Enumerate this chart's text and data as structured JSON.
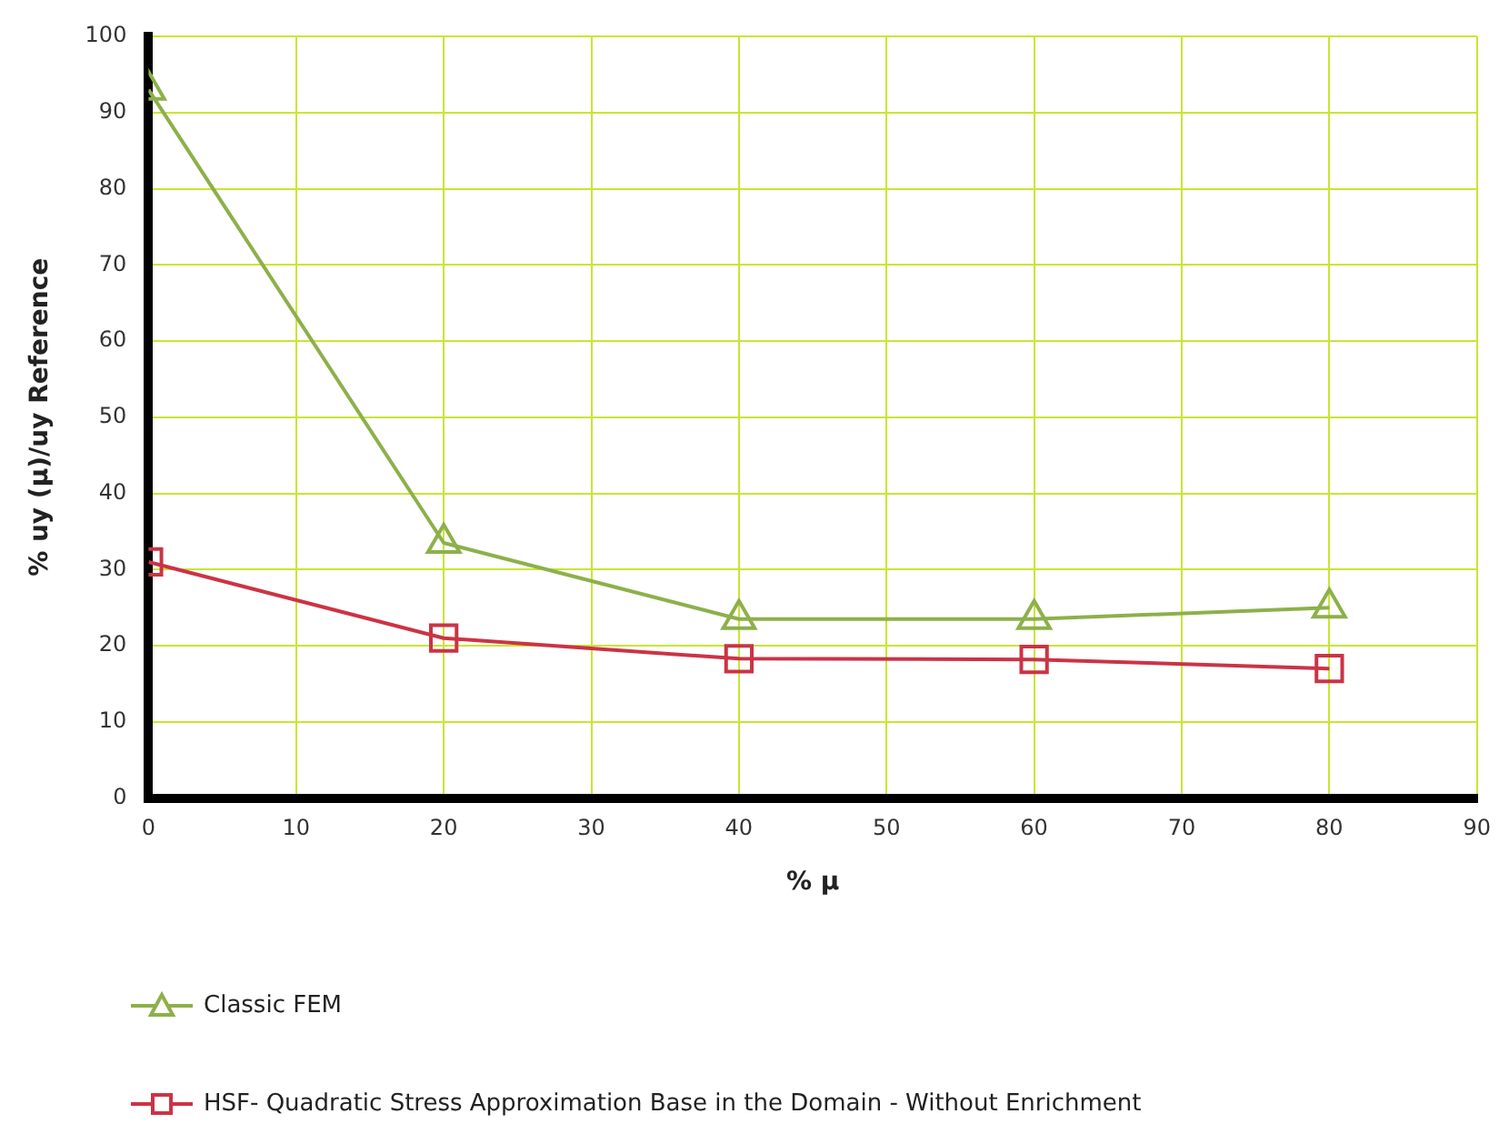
{
  "chart_data": {
    "type": "line",
    "xlabel": "% μ",
    "ylabel": "% uy (μ)/uy Reference",
    "x": [
      0,
      20,
      40,
      60,
      80
    ],
    "series": [
      {
        "name": "Classic FEM",
        "color": "#8db04a",
        "marker": "triangle",
        "values": [
          93,
          33.5,
          23.5,
          23.5,
          25
        ]
      },
      {
        "name": "HSF- Quadratic Stress Approximation Base in the Domain - Without Enrichment",
        "color": "#cc3344",
        "marker": "square",
        "values": [
          31,
          21,
          18.3,
          18.2,
          17
        ]
      }
    ],
    "xlim": [
      0,
      90
    ],
    "xticks": [
      0,
      10,
      20,
      30,
      40,
      50,
      60,
      70,
      80,
      90
    ],
    "ylim": [
      0,
      100
    ],
    "yticks": [
      0,
      10,
      20,
      30,
      40,
      50,
      60,
      70,
      80,
      90,
      100
    ],
    "grid": true,
    "legend": "bottom",
    "line_style": "solid"
  }
}
